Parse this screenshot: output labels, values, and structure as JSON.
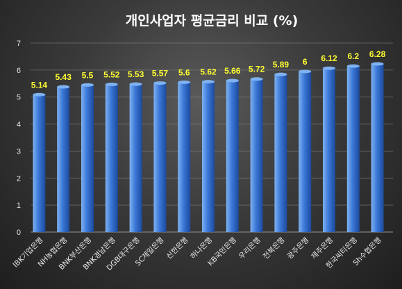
{
  "chart_data": {
    "type": "bar",
    "title": "개인사업자 평균금리 비교 (%)",
    "categories": [
      "IBK기업은행",
      "NH농협은행",
      "BNK부산은행",
      "BNK경남은행",
      "DGB대구은행",
      "SC제일은행",
      "신한은행",
      "하나은행",
      "KB국민은행",
      "우리은행",
      "전북은행",
      "광주은행",
      "제주은행",
      "한국씨티은행",
      "Sh수협은행"
    ],
    "values": [
      5.14,
      5.43,
      5.5,
      5.52,
      5.53,
      5.57,
      5.6,
      5.62,
      5.66,
      5.72,
      5.89,
      6,
      6.12,
      6.2,
      6.28
    ],
    "value_labels": [
      "5.14",
      "5.43",
      "5.5",
      "5.52",
      "5.53",
      "5.57",
      "5.6",
      "5.62",
      "5.66",
      "5.72",
      "5.89",
      "6",
      "6.12",
      "6.2",
      "6.28"
    ],
    "y_ticks": [
      "0",
      "1",
      "2",
      "3",
      "4",
      "5",
      "6",
      "7"
    ],
    "ylim": [
      0,
      7
    ],
    "xlabel": "",
    "ylabel": "",
    "grid": true,
    "legend": "none",
    "colors": {
      "bar_light": "#7fb2f0",
      "bar_mid": "#3b78d8",
      "bar_dark": "#1c4a9c",
      "value_label": "#ffff33",
      "gridline": "#8a8a8a",
      "text": "#e8e8e8"
    }
  }
}
